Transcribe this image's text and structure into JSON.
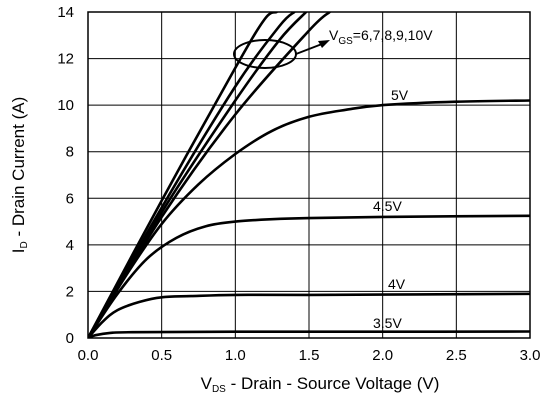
{
  "chart_data": {
    "type": "line",
    "xlabel": {
      "main": "V",
      "sub": "DS",
      "rest": " - Drain - Source Voltage (V)"
    },
    "ylabel": {
      "main": "I",
      "sub": "D",
      "rest": " - Drain Current (A)"
    },
    "xlim": [
      0,
      3.0
    ],
    "ylim": [
      0,
      14
    ],
    "x_ticks": [
      "0.0",
      "0.5",
      "1.0",
      "1.5",
      "2.0",
      "2.5",
      "3.0"
    ],
    "y_ticks": [
      "0",
      "2",
      "4",
      "6",
      "8",
      "10",
      "12",
      "14"
    ],
    "grid": true,
    "series_color": "#000000",
    "series": [
      {
        "x": [
          0,
          0.5,
          1.0,
          1.2,
          1.28
        ],
        "y": [
          0,
          5.9,
          11.6,
          13.7,
          14
        ]
      },
      {
        "x": [
          0,
          0.5,
          1.0,
          1.3,
          1.4
        ],
        "y": [
          0,
          5.6,
          10.8,
          13.4,
          14
        ]
      },
      {
        "x": [
          0,
          0.5,
          1.0,
          1.3,
          1.48
        ],
        "y": [
          0,
          5.4,
          10.2,
          12.8,
          14
        ]
      },
      {
        "x": [
          0,
          0.5,
          1.0,
          1.5,
          1.64
        ],
        "y": [
          0,
          5.2,
          9.6,
          13.2,
          14
        ]
      },
      {
        "x": [
          0,
          0.25,
          0.5,
          0.75,
          1.0,
          1.25,
          1.5,
          1.75,
          2.0,
          2.5,
          3.0
        ],
        "y": [
          0,
          2.6,
          4.9,
          6.6,
          7.9,
          8.9,
          9.5,
          9.8,
          10.0,
          10.15,
          10.2
        ]
      },
      {
        "x": [
          0,
          0.2,
          0.4,
          0.6,
          0.8,
          1.0,
          1.25,
          1.5,
          2.0,
          3.0
        ],
        "y": [
          0,
          1.9,
          3.4,
          4.3,
          4.8,
          5.0,
          5.1,
          5.15,
          5.2,
          5.25
        ]
      },
      {
        "x": [
          0,
          0.1,
          0.2,
          0.35,
          0.5,
          0.7,
          1.0,
          1.5,
          3.0
        ],
        "y": [
          0,
          0.7,
          1.2,
          1.55,
          1.75,
          1.8,
          1.85,
          1.85,
          1.9
        ]
      },
      {
        "x": [
          0,
          0.05,
          0.15,
          0.3,
          1.0,
          2.0,
          3.0
        ],
        "y": [
          0,
          0.12,
          0.22,
          0.25,
          0.27,
          0.27,
          0.28
        ]
      }
    ],
    "annotations": {
      "vgs": {
        "main": "V",
        "sub": "GS",
        "rest": "=6,7,8,9,10V"
      },
      "l5": "5V",
      "l45": "4.5V",
      "l4": "4V",
      "l35": "3.5V"
    }
  }
}
